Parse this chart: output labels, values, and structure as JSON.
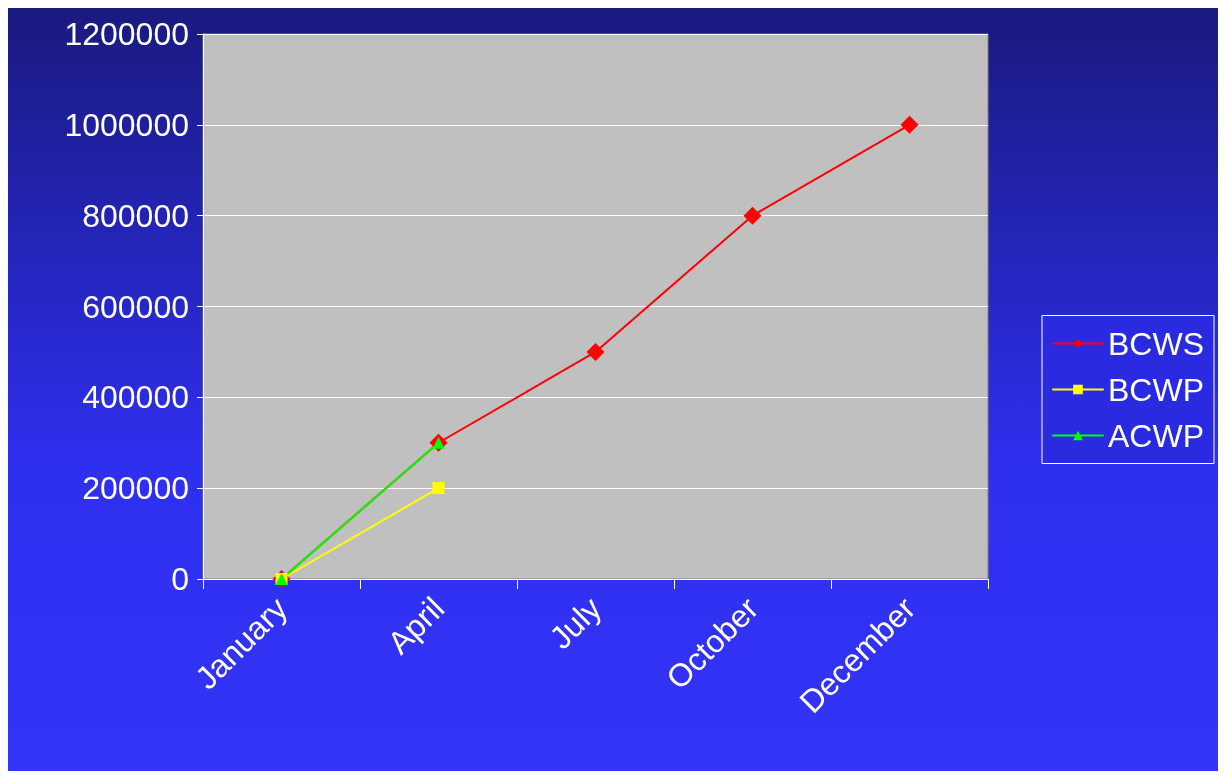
{
  "chart_data": {
    "type": "line",
    "categories": [
      "January",
      "April",
      "July",
      "October",
      "December"
    ],
    "series": [
      {
        "name": "BCWS",
        "color": "#ff0000",
        "marker": "diamond",
        "values": [
          0,
          300000,
          500000,
          800000,
          1000000
        ]
      },
      {
        "name": "BCWP",
        "color": "#ffff00",
        "marker": "square",
        "values": [
          0,
          200000,
          null,
          null,
          null
        ]
      },
      {
        "name": "ACWP",
        "color": "#00ff00",
        "marker": "triangle",
        "values": [
          0,
          300000,
          null,
          null,
          null
        ]
      }
    ],
    "ylim": [
      0,
      1200000
    ],
    "yticks": [
      0,
      200000,
      400000,
      600000,
      800000,
      1000000,
      1200000
    ],
    "grid": "y",
    "legend": "right"
  }
}
